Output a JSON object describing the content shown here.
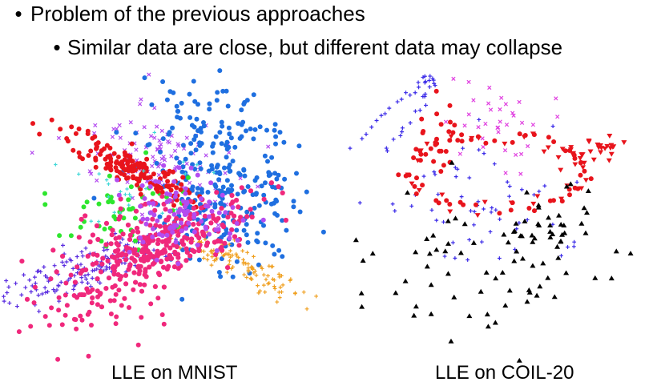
{
  "slide": {
    "bullet_char": "•",
    "bullet1": "Problem of the previous approaches",
    "bullet2": "Similar data are close, but different data may collapse",
    "caption_left": "LLE on MNIST",
    "caption_right": "LLE on COIL-20"
  },
  "colors": {
    "blue": "#1f6fe0",
    "red": "#e8141c",
    "magenta": "#f0287c",
    "purple": "#b44cf0",
    "violet": "#5a2de0",
    "green": "#2ee62e",
    "orange": "#f0a020",
    "cyan": "#40d8d8",
    "black": "#000000",
    "plus_blue": "#3a2ae8",
    "pink_x": "#e040e0"
  }
}
